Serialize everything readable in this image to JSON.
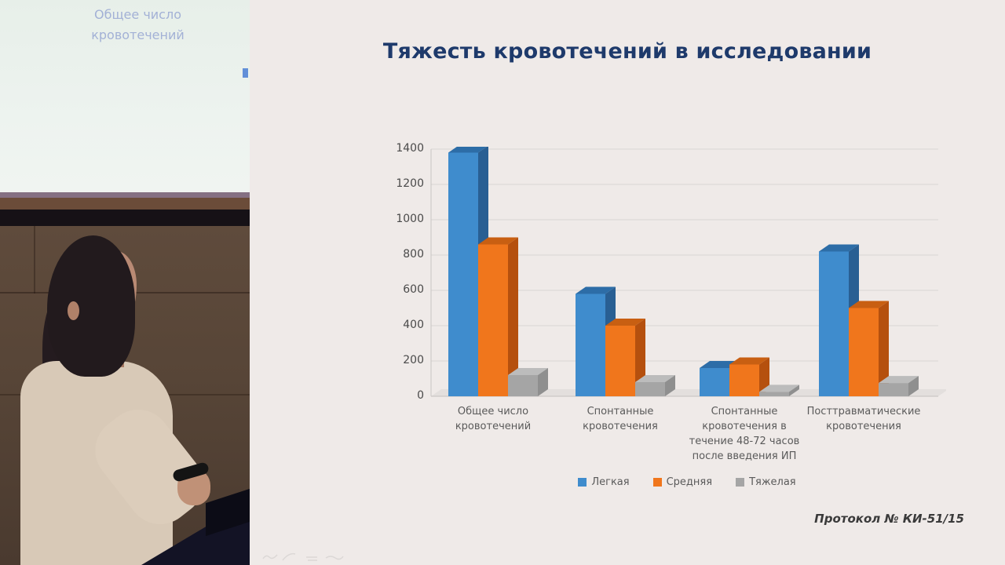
{
  "photo": {
    "projected_slide_fragment": "Общее число кровотечений"
  },
  "slide": {
    "title": "Тяжесть кровотечений в исследовании",
    "footer": "Протокол № КИ-51/15"
  },
  "chart_data": {
    "type": "bar",
    "style": "3d-clustered-column",
    "title": "Тяжесть кровотечений в исследовании",
    "categories": [
      "Общее число кровотечений",
      "Спонтанные кровотечения",
      "Спонтанные кровотечения в течение 48-72 часов после введения ИП",
      "Посттравматические кровотечения"
    ],
    "series": [
      {
        "name": "Легкая",
        "values": [
          1380,
          580,
          160,
          820
        ],
        "color": "#3f8ccd",
        "color_top": "#2d6da7",
        "color_side": "#295f93"
      },
      {
        "name": "Средняя",
        "values": [
          860,
          400,
          180,
          500
        ],
        "color": "#f0761c",
        "color_top": "#c85f12",
        "color_side": "#b5500e"
      },
      {
        "name": "Тяжелая",
        "values": [
          120,
          80,
          25,
          75
        ],
        "color": "#a5a5a5",
        "color_top": "#bcbcbc",
        "color_side": "#8f8f8f"
      }
    ],
    "ylabel": "",
    "xlabel": "",
    "ylim": [
      0,
      1400
    ],
    "ytick_step": 200,
    "grid": "horizontal",
    "legend_position": "bottom",
    "background": "#efeae8",
    "gridline_color": "#d9d5d3"
  }
}
